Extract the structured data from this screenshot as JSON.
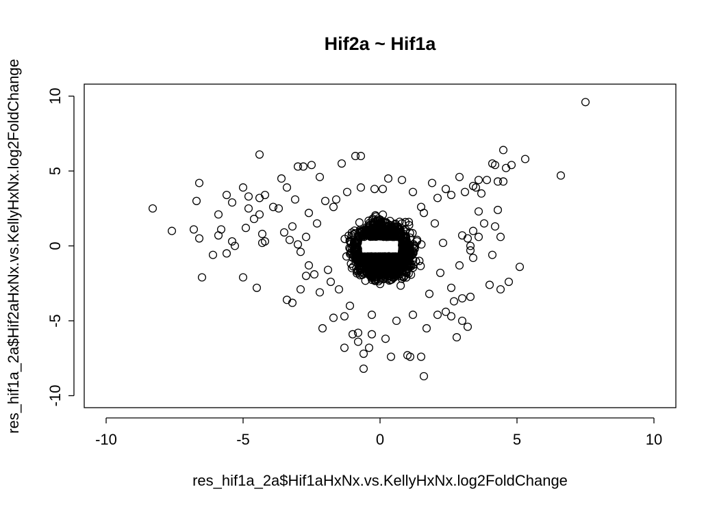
{
  "chart_data": {
    "type": "scatter",
    "title": "Hif2a ~ Hif1a",
    "xlabel": "res_hif1a_2a$Hif1aHxNx.vs.KellyHxNx.log2FoldChange",
    "ylabel": "res_hif1a_2a$Hif2aHxNx.vs.KellyHxNx.log2FoldChange",
    "xlim": [
      -10.8,
      10.8
    ],
    "ylim": [
      -10.8,
      10.8
    ],
    "x_ticks": [
      "-10",
      "-5",
      "0",
      "5",
      "10"
    ],
    "y_ticks": [
      "-10",
      "-5",
      "0",
      "5",
      "10"
    ],
    "grid": false,
    "legend": "none",
    "marker": "open-circle",
    "empty_box": {
      "x": [
        -0.8,
        0.8
      ],
      "y": [
        -0.7,
        0.6
      ]
    },
    "dense_core_approx": {
      "count": 1800,
      "x_range": [
        -2.5,
        2.5
      ],
      "y_range": [
        -5.0,
        4.0
      ]
    },
    "points": [
      [
        -8.3,
        2.5
      ],
      [
        -7.6,
        1.0
      ],
      [
        -6.8,
        1.1
      ],
      [
        -6.6,
        0.5
      ],
      [
        -6.7,
        3.0
      ],
      [
        -6.6,
        4.2
      ],
      [
        -6.5,
        -2.1
      ],
      [
        -6.1,
        -0.6
      ],
      [
        -5.9,
        2.1
      ],
      [
        -5.9,
        0.7
      ],
      [
        -5.8,
        1.1
      ],
      [
        -5.6,
        3.4
      ],
      [
        -5.6,
        -0.5
      ],
      [
        -5.4,
        2.9
      ],
      [
        -5.4,
        0.3
      ],
      [
        -5.3,
        0.0
      ],
      [
        -5.0,
        3.9
      ],
      [
        -5.0,
        -2.1
      ],
      [
        -4.9,
        1.2
      ],
      [
        -4.8,
        3.3
      ],
      [
        -4.8,
        2.5
      ],
      [
        -4.6,
        1.8
      ],
      [
        -4.5,
        -2.8
      ],
      [
        -4.4,
        3.2
      ],
      [
        -4.4,
        2.1
      ],
      [
        -4.4,
        6.1
      ],
      [
        -4.3,
        0.2
      ],
      [
        -4.3,
        0.8
      ],
      [
        -4.2,
        0.3
      ],
      [
        -4.2,
        3.4
      ],
      [
        -3.9,
        2.6
      ],
      [
        -3.7,
        2.5
      ],
      [
        -3.6,
        4.5
      ],
      [
        -3.5,
        0.9
      ],
      [
        -3.4,
        3.9
      ],
      [
        -3.4,
        -3.6
      ],
      [
        -3.3,
        0.4
      ],
      [
        -3.2,
        -3.8
      ],
      [
        -3.2,
        1.3
      ],
      [
        -3.1,
        3.1
      ],
      [
        -3.0,
        5.3
      ],
      [
        -3.0,
        0.1
      ],
      [
        -2.9,
        -2.9
      ],
      [
        -2.8,
        5.3
      ],
      [
        -2.6,
        2.2
      ],
      [
        -2.5,
        5.4
      ],
      [
        -2.6,
        -1.3
      ],
      [
        -2.4,
        -1.9
      ],
      [
        -2.2,
        4.6
      ],
      [
        -2.1,
        -5.5
      ],
      [
        -2.0,
        3.0
      ],
      [
        -1.9,
        -1.6
      ],
      [
        -1.7,
        -4.8
      ],
      [
        -1.6,
        3.1
      ],
      [
        -1.5,
        -2.9
      ],
      [
        -1.4,
        5.5
      ],
      [
        -1.3,
        -6.8
      ],
      [
        -1.3,
        -4.7
      ],
      [
        -1.0,
        -5.9
      ],
      [
        -0.9,
        6.0
      ],
      [
        -0.8,
        -6.4
      ],
      [
        -0.8,
        -5.8
      ],
      [
        -0.7,
        6.0
      ],
      [
        -0.6,
        -7.2
      ],
      [
        -0.6,
        -8.2
      ],
      [
        -0.4,
        -6.8
      ],
      [
        -0.3,
        -5.9
      ],
      [
        0.2,
        -6.2
      ],
      [
        0.3,
        4.5
      ],
      [
        0.4,
        -7.4
      ],
      [
        0.8,
        4.4
      ],
      [
        1.0,
        -7.3
      ],
      [
        1.1,
        -7.4
      ],
      [
        1.5,
        -7.4
      ],
      [
        1.6,
        -8.7
      ],
      [
        1.7,
        -5.5
      ],
      [
        2.1,
        -4.6
      ],
      [
        2.4,
        -4.4
      ],
      [
        2.6,
        -4.7
      ],
      [
        2.7,
        -3.7
      ],
      [
        2.8,
        -6.1
      ],
      [
        3.0,
        -3.5
      ],
      [
        3.0,
        -5.0
      ],
      [
        3.2,
        -5.4
      ],
      [
        3.3,
        -3.4
      ],
      [
        2.6,
        -2.8
      ],
      [
        2.9,
        -1.3
      ],
      [
        3.0,
        0.7
      ],
      [
        3.1,
        3.6
      ],
      [
        3.2,
        0.5
      ],
      [
        3.3,
        0.0
      ],
      [
        3.3,
        -0.3
      ],
      [
        3.4,
        1.0
      ],
      [
        3.4,
        -0.8
      ],
      [
        3.6,
        2.3
      ],
      [
        3.7,
        3.5
      ],
      [
        3.6,
        4.4
      ],
      [
        3.6,
        0.6
      ],
      [
        3.8,
        1.5
      ],
      [
        3.9,
        4.4
      ],
      [
        4.0,
        -2.6
      ],
      [
        4.1,
        -0.6
      ],
      [
        4.2,
        1.3
      ],
      [
        4.3,
        2.4
      ],
      [
        4.1,
        5.5
      ],
      [
        4.2,
        5.4
      ],
      [
        4.3,
        4.3
      ],
      [
        4.4,
        0.6
      ],
      [
        4.4,
        -2.9
      ],
      [
        4.5,
        4.3
      ],
      [
        4.5,
        6.4
      ],
      [
        4.6,
        5.2
      ],
      [
        4.7,
        -2.4
      ],
      [
        4.8,
        5.4
      ],
      [
        5.1,
        -1.4
      ],
      [
        5.3,
        5.8
      ],
      [
        6.6,
        4.7
      ],
      [
        7.5,
        9.6
      ],
      [
        1.6,
        2.2
      ],
      [
        2.1,
        3.2
      ],
      [
        2.6,
        3.4
      ],
      [
        1.9,
        4.2
      ],
      [
        2.4,
        3.8
      ],
      [
        2.9,
        4.6
      ],
      [
        3.4,
        4.0
      ],
      [
        3.5,
        3.9
      ],
      [
        1.2,
        3.6
      ],
      [
        0.1,
        3.8
      ],
      [
        -0.2,
        3.8
      ],
      [
        -0.7,
        3.9
      ],
      [
        -1.2,
        3.6
      ],
      [
        -1.7,
        2.6
      ],
      [
        -2.3,
        1.5
      ],
      [
        -2.7,
        0.6
      ],
      [
        -2.9,
        -0.4
      ],
      [
        -2.7,
        -2.0
      ],
      [
        -2.2,
        -3.1
      ],
      [
        -1.8,
        -2.4
      ],
      [
        -1.1,
        -4.0
      ],
      [
        -0.3,
        -4.6
      ],
      [
        0.6,
        -5.0
      ],
      [
        1.2,
        -4.6
      ],
      [
        1.8,
        -3.2
      ],
      [
        2.2,
        -1.8
      ],
      [
        2.3,
        0.2
      ],
      [
        2.0,
        1.5
      ],
      [
        1.5,
        2.6
      ]
    ]
  }
}
